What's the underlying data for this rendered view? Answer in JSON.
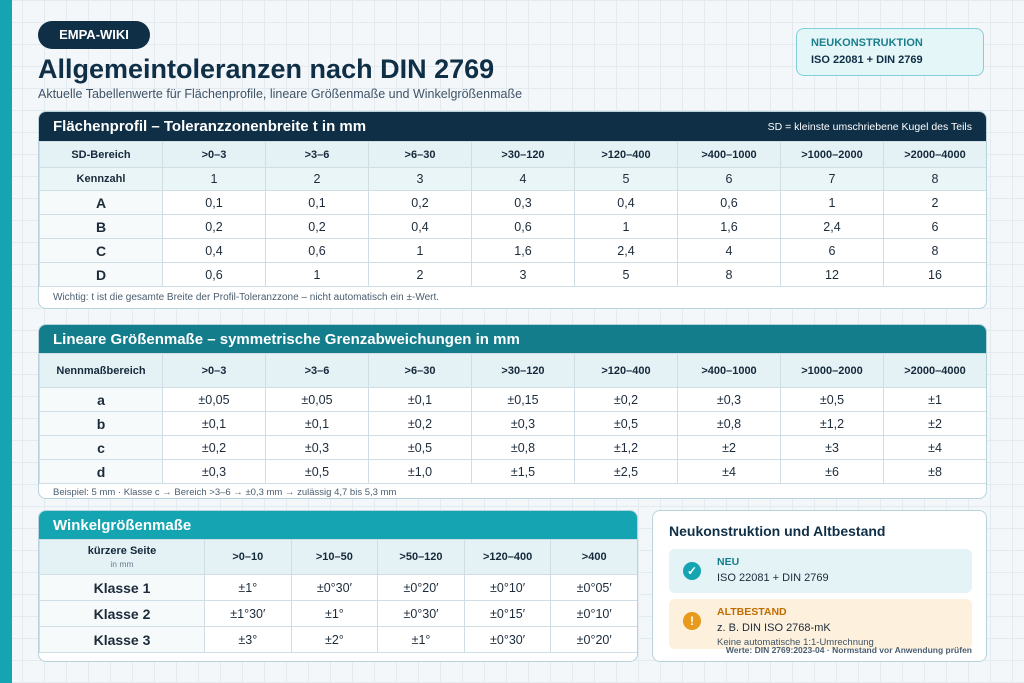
{
  "header": {
    "badge": "EMPA-WIKI",
    "title": "Allgemeintoleranzen nach DIN 2769",
    "subtitle": "Aktuelle Tabellenwerte für Flächenprofile, lineare Größenmaße und Winkelgrößenmaße"
  },
  "badge_box": {
    "line1": "NEUKONSTRUKTION",
    "line2": "ISO 22081 + DIN 2769"
  },
  "profile": {
    "title": "Flächenprofil – Toleranzzonenbreite t in mm",
    "note_right": "SD = kleinste umschriebene Kugel des Teils",
    "header_label": "SD-Bereich",
    "ranges": [
      ">0–3",
      ">3–6",
      ">6–30",
      ">30–120",
      ">120–400",
      ">400–1000",
      ">1000–2000",
      ">2000–4000"
    ],
    "kennzahl_label": "Kennzahl",
    "kennzahl": [
      "1",
      "2",
      "3",
      "4",
      "5",
      "6",
      "7",
      "8"
    ],
    "rows": [
      {
        "label": "A",
        "values": [
          "0,1",
          "0,1",
          "0,2",
          "0,3",
          "0,4",
          "0,6",
          "1",
          "2"
        ]
      },
      {
        "label": "B",
        "values": [
          "0,2",
          "0,2",
          "0,4",
          "0,6",
          "1",
          "1,6",
          "2,4",
          "6"
        ]
      },
      {
        "label": "C",
        "values": [
          "0,4",
          "0,6",
          "1",
          "1,6",
          "2,4",
          "4",
          "6",
          "8"
        ]
      },
      {
        "label": "D",
        "values": [
          "0,6",
          "1",
          "2",
          "3",
          "5",
          "8",
          "12",
          "16"
        ]
      }
    ],
    "note": "Wichtig: t ist die gesamte Breite der Profil-Toleranzzone – nicht automatisch ein ±-Wert."
  },
  "linear": {
    "title": "Lineare Größenmaße – symmetrische Grenzabweichungen in mm",
    "header_label": "Nennmaßbereich",
    "ranges": [
      ">0–3",
      ">3–6",
      ">6–30",
      ">30–120",
      ">120–400",
      ">400–1000",
      ">1000–2000",
      ">2000–4000"
    ],
    "rows": [
      {
        "label": "a",
        "values": [
          "±0,05",
          "±0,05",
          "±0,1",
          "±0,15",
          "±0,2",
          "±0,3",
          "±0,5",
          "±1"
        ]
      },
      {
        "label": "b",
        "values": [
          "±0,1",
          "±0,1",
          "±0,2",
          "±0,3",
          "±0,5",
          "±0,8",
          "±1,2",
          "±2"
        ]
      },
      {
        "label": "c",
        "values": [
          "±0,2",
          "±0,3",
          "±0,5",
          "±0,8",
          "±1,2",
          "±2",
          "±3",
          "±4"
        ]
      },
      {
        "label": "d",
        "values": [
          "±0,3",
          "±0,5",
          "±1,0",
          "±1,5",
          "±2,5",
          "±4",
          "±6",
          "±8"
        ]
      }
    ],
    "note": "Beispiel: 5 mm · Klasse c → Bereich >3–6 → ±0,3 mm → zulässig 4,7 bis 5,3 mm"
  },
  "angle": {
    "title": "Winkelgrößenmaße",
    "header_label": "kürzere Seite",
    "header_sub": "in mm",
    "ranges": [
      ">0–10",
      ">10–50",
      ">50–120",
      ">120–400",
      ">400"
    ],
    "rows": [
      {
        "label": "Klasse 1",
        "values": [
          "±1°",
          "±0°30′",
          "±0°20′",
          "±0°10′",
          "±0°05′"
        ]
      },
      {
        "label": "Klasse 2",
        "values": [
          "±1°30′",
          "±1°",
          "±0°30′",
          "±0°15′",
          "±0°10′"
        ]
      },
      {
        "label": "Klasse 3",
        "values": [
          "±3°",
          "±2°",
          "±1°",
          "±0°30′",
          "±0°20′"
        ]
      }
    ]
  },
  "status": {
    "title": "Neukonstruktion und Altbestand",
    "neu": {
      "label": "NEU",
      "value": "ISO 22081 + DIN 2769",
      "icon": "check-circle-icon",
      "color": "#15a5b2"
    },
    "alt": {
      "label": "ALTBESTAND",
      "value": "z. B. DIN ISO 2768-mK",
      "note": "Keine automatische 1:1-Umrechnung",
      "icon": "warning-circle-icon",
      "color": "#e89a1c"
    },
    "footnote": "Werte: DIN 2769:2023-04 · Normstand vor Anwendung prüfen"
  },
  "colors": {
    "navy": "#0f2f47",
    "teal": "#15a5b2",
    "teal_dark": "#137d8c",
    "orange": "#e89a1c"
  }
}
